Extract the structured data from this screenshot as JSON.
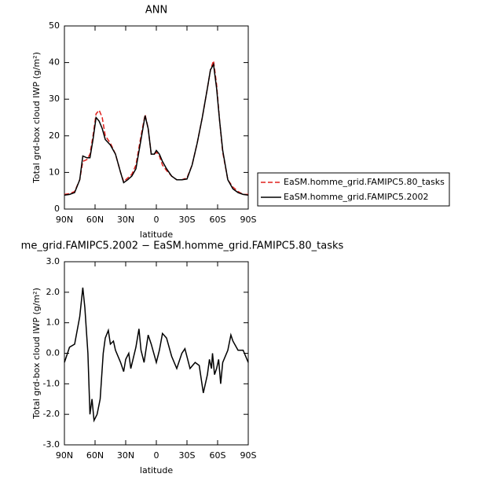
{
  "chart_data": [
    {
      "type": "line",
      "title": "ANN",
      "xlabel": "latitude",
      "ylabel": "Total grd-box cloud IWP (g/m²)",
      "x": [
        90,
        85,
        80,
        75,
        72,
        68,
        65,
        62,
        59,
        56,
        53,
        50,
        45,
        40,
        35,
        32,
        28,
        24,
        20,
        15,
        11,
        8,
        5,
        2,
        0,
        -3,
        -6,
        -10,
        -15,
        -20,
        -25,
        -30,
        -35,
        -40,
        -45,
        -50,
        -53,
        -56,
        -59,
        -62,
        -65,
        -70,
        -75,
        -80,
        -85,
        -90
      ],
      "series": [
        {
          "name": "EaSM.homme_grid.FAMIPC5.80_tasks",
          "color": "#e0201c",
          "linestyle": "dashed",
          "values": [
            4,
            4.2,
            4.8,
            8,
            13,
            13.5,
            15,
            20,
            26,
            27,
            25,
            20,
            18,
            15,
            10,
            7.5,
            8.5,
            9.5,
            12,
            20,
            25.8,
            22,
            15,
            15,
            15.5,
            14.5,
            12,
            10.5,
            9,
            8,
            8,
            8.5,
            12,
            18,
            25,
            33,
            38,
            40.5,
            34,
            24,
            15.5,
            8,
            6,
            4.8,
            4,
            4
          ]
        },
        {
          "name": "EaSM.homme_grid.FAMIPC5.2002",
          "color": "#000000",
          "linestyle": "solid",
          "values": [
            3.8,
            4,
            4.5,
            8,
            14.5,
            14,
            14,
            19,
            25,
            24,
            22,
            19,
            17.5,
            15,
            10,
            7.2,
            8,
            9,
            11,
            19,
            25.5,
            22,
            15,
            15,
            16,
            15,
            13,
            11,
            9,
            8,
            8,
            8.2,
            12,
            18,
            25,
            33,
            38,
            39.5,
            33,
            24,
            16,
            8,
            5.5,
            4.5,
            4,
            3.8
          ]
        }
      ],
      "xlim": [
        90,
        -90
      ],
      "xticks": [
        {
          "value": 90,
          "label": "90N"
        },
        {
          "value": 60,
          "label": "60N"
        },
        {
          "value": 30,
          "label": "30N"
        },
        0,
        {
          "value": -30,
          "label": "30S"
        },
        {
          "value": -60,
          "label": "60S"
        },
        {
          "value": -90,
          "label": "90S"
        }
      ],
      "ylim": [
        0,
        50
      ],
      "yticks": [
        0,
        10,
        20,
        30,
        40,
        50
      ],
      "legend": "right"
    },
    {
      "type": "line",
      "title": "me_grid.FAMIPC5.2002 − EaSM.homme_grid.FAMIPC5.80_tasks",
      "xlabel": "latitude",
      "ylabel": "Total grd-box cloud IWP (g/m²)",
      "x": [
        90,
        85,
        80,
        75,
        72,
        70,
        67,
        65,
        63,
        61,
        58,
        55,
        52,
        50,
        47,
        45,
        42,
        40,
        35,
        32,
        30,
        27,
        25,
        20,
        17,
        15,
        12,
        8,
        5,
        0,
        -3,
        -6,
        -10,
        -15,
        -20,
        -25,
        -28,
        -33,
        -38,
        -42,
        -46,
        -50,
        -52,
        -54,
        -55,
        -57,
        -59,
        -61,
        -63,
        -65,
        -70,
        -73,
        -75,
        -80,
        -85,
        -90
      ],
      "series": [
        {
          "color": "#000000",
          "linestyle": "solid",
          "values": [
            -0.3,
            0.2,
            0.3,
            1.2,
            2.15,
            1.5,
            0,
            -2.0,
            -1.5,
            -2.2,
            -2.0,
            -1.5,
            0,
            0.5,
            0.75,
            0.3,
            0.4,
            0.1,
            -0.3,
            -0.6,
            -0.2,
            0,
            -0.5,
            0.2,
            0.8,
            0.1,
            -0.3,
            0.6,
            0.3,
            -0.3,
            0.1,
            0.65,
            0.5,
            -0.1,
            -0.5,
            0,
            0.15,
            -0.5,
            -0.3,
            -0.4,
            -1.3,
            -0.7,
            -0.2,
            -0.5,
            0,
            -0.7,
            -0.5,
            -0.2,
            -1.0,
            -0.3,
            0.1,
            0.6,
            0.4,
            0.1,
            0.1,
            -0.3
          ]
        }
      ],
      "xlim": [
        90,
        -90
      ],
      "xticks": [
        {
          "value": 90,
          "label": "90N"
        },
        {
          "value": 60,
          "label": "60N"
        },
        {
          "value": 30,
          "label": "30N"
        },
        0,
        {
          "value": -30,
          "label": "30S"
        },
        {
          "value": -60,
          "label": "60S"
        },
        {
          "value": -90,
          "label": "90S"
        }
      ],
      "ylim": [
        -3,
        3
      ],
      "yticks": [
        {
          "value": -3,
          "label": "-3.0"
        },
        {
          "value": -2,
          "label": "-2.0"
        },
        {
          "value": -1,
          "label": "-1.0"
        },
        {
          "value": 0,
          "label": "0.0"
        },
        {
          "value": 1,
          "label": "1.0"
        },
        {
          "value": 2,
          "label": "2.0"
        },
        {
          "value": 3,
          "label": "3.0"
        }
      ]
    }
  ]
}
